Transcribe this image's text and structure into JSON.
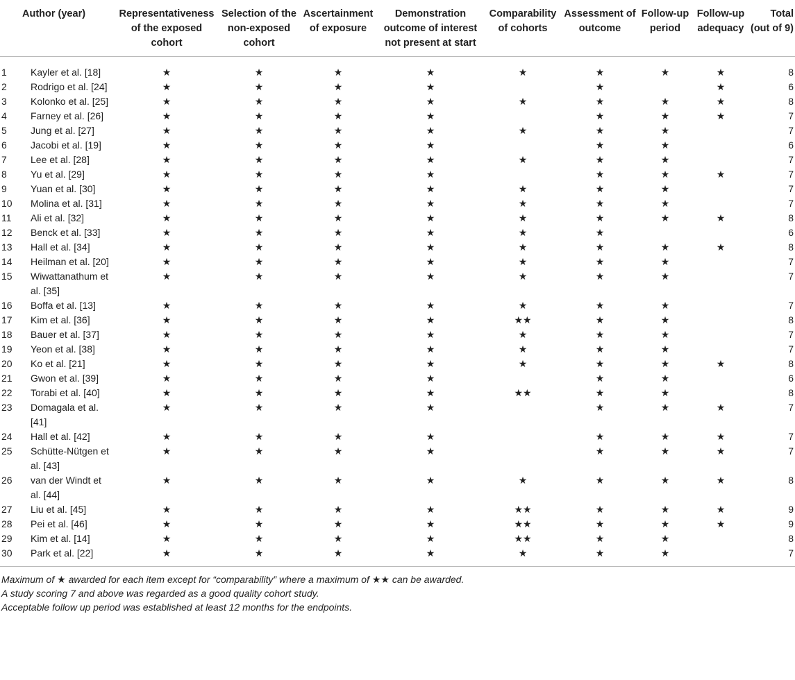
{
  "table": {
    "headers": {
      "number": "",
      "author": "Author (year)",
      "representativeness": "Representativeness of the exposed cohort",
      "selection": "Selection of the non-exposed cohort",
      "ascertainment": "Ascertainment of exposure",
      "demonstration": "Demonstration outcome of interest not present at start",
      "comparability": "Comparability of cohorts",
      "assessment": "Assessment of outcome",
      "followup_period": "Follow-up period",
      "followup_adequacy": "Follow-up adequacy",
      "total": "Total (out of 9)"
    },
    "rows": [
      {
        "num": "1",
        "author": "Kayler et al. [18]",
        "rep": "★",
        "sel": "★",
        "asc": "★",
        "dem": "★",
        "comp": "★",
        "ass": "★",
        "fup": "★",
        "fua": "★",
        "total": "8"
      },
      {
        "num": "2",
        "author": "Rodrigo et al. [24]",
        "rep": "★",
        "sel": "★",
        "asc": "★",
        "dem": "★",
        "comp": "",
        "ass": "★",
        "fup": "",
        "fua": "★",
        "total": "6"
      },
      {
        "num": "3",
        "author": "Kolonko et al. [25]",
        "rep": "★",
        "sel": "★",
        "asc": "★",
        "dem": "★",
        "comp": "★",
        "ass": "★",
        "fup": "★",
        "fua": "★",
        "total": "8"
      },
      {
        "num": "4",
        "author": "Farney et al. [26]",
        "rep": "★",
        "sel": "★",
        "asc": "★",
        "dem": "★",
        "comp": "",
        "ass": "★",
        "fup": "★",
        "fua": "★",
        "total": "7"
      },
      {
        "num": "5",
        "author": "Jung et al. [27]",
        "rep": "★",
        "sel": "★",
        "asc": "★",
        "dem": "★",
        "comp": "★",
        "ass": "★",
        "fup": "★",
        "fua": "",
        "total": "7"
      },
      {
        "num": "6",
        "author": "Jacobi et al. [19]",
        "rep": "★",
        "sel": "★",
        "asc": "★",
        "dem": "★",
        "comp": "",
        "ass": "★",
        "fup": "★",
        "fua": "",
        "total": "6"
      },
      {
        "num": "7",
        "author": "Lee et al. [28]",
        "rep": "★",
        "sel": "★",
        "asc": "★",
        "dem": "★",
        "comp": "★",
        "ass": "★",
        "fup": "★",
        "fua": "",
        "total": "7"
      },
      {
        "num": "8",
        "author": "Yu et al. [29]",
        "rep": "★",
        "sel": "★",
        "asc": "★",
        "dem": "★",
        "comp": "",
        "ass": "★",
        "fup": "★",
        "fua": "★",
        "total": "7"
      },
      {
        "num": "9",
        "author": "Yuan et al. [30]",
        "rep": "★",
        "sel": "★",
        "asc": "★",
        "dem": "★",
        "comp": "★",
        "ass": "★",
        "fup": "★",
        "fua": "",
        "total": "7"
      },
      {
        "num": "10",
        "author": "Molina et al. [31]",
        "rep": "★",
        "sel": "★",
        "asc": "★",
        "dem": "★",
        "comp": "★",
        "ass": "★",
        "fup": "★",
        "fua": "",
        "total": "7"
      },
      {
        "num": "11",
        "author": "Ali et al. [32]",
        "rep": "★",
        "sel": "★",
        "asc": "★",
        "dem": "★",
        "comp": "★",
        "ass": "★",
        "fup": "★",
        "fua": "★",
        "total": "8"
      },
      {
        "num": "12",
        "author": "Benck et al. [33]",
        "rep": "★",
        "sel": "★",
        "asc": "★",
        "dem": "★",
        "comp": "★",
        "ass": "★",
        "fup": "",
        "fua": "",
        "total": "6"
      },
      {
        "num": "13",
        "author": "Hall et al. [34]",
        "rep": "★",
        "sel": "★",
        "asc": "★",
        "dem": "★",
        "comp": "★",
        "ass": "★",
        "fup": "★",
        "fua": "★",
        "total": "8"
      },
      {
        "num": "14",
        "author": "Heilman et al. [20]",
        "rep": "★",
        "sel": "★",
        "asc": "★",
        "dem": "★",
        "comp": "★",
        "ass": "★",
        "fup": "★",
        "fua": "",
        "total": "7"
      },
      {
        "num": "15",
        "author": "Wiwattanathum et al. [35]",
        "rep": "★",
        "sel": "★",
        "asc": "★",
        "dem": "★",
        "comp": "★",
        "ass": "★",
        "fup": "★",
        "fua": "",
        "total": "7"
      },
      {
        "num": "16",
        "author": "Boffa et al. [13]",
        "rep": "★",
        "sel": "★",
        "asc": "★",
        "dem": "★",
        "comp": "★",
        "ass": "★",
        "fup": "★",
        "fua": "",
        "total": "7"
      },
      {
        "num": "17",
        "author": "Kim et al. [36]",
        "rep": "★",
        "sel": "★",
        "asc": "★",
        "dem": "★",
        "comp": "★★",
        "ass": "★",
        "fup": "★",
        "fua": "",
        "total": "8"
      },
      {
        "num": "18",
        "author": "Bauer et al. [37]",
        "rep": "★",
        "sel": "★",
        "asc": "★",
        "dem": "★",
        "comp": "★",
        "ass": "★",
        "fup": "★",
        "fua": "",
        "total": "7"
      },
      {
        "num": "19",
        "author": "Yeon et al. [38]",
        "rep": "★",
        "sel": "★",
        "asc": "★",
        "dem": "★",
        "comp": "★",
        "ass": "★",
        "fup": "★",
        "fua": "",
        "total": "7"
      },
      {
        "num": "20",
        "author": "Ko et al. [21]",
        "rep": "★",
        "sel": "★",
        "asc": "★",
        "dem": "★",
        "comp": "★",
        "ass": "★",
        "fup": "★",
        "fua": "★",
        "total": "8"
      },
      {
        "num": "21",
        "author": "Gwon et al. [39]",
        "rep": "★",
        "sel": "★",
        "asc": "★",
        "dem": "★",
        "comp": "",
        "ass": "★",
        "fup": "★",
        "fua": "",
        "total": "6"
      },
      {
        "num": "22",
        "author": "Torabi et al. [40]",
        "rep": "★",
        "sel": "★",
        "asc": "★",
        "dem": "★",
        "comp": "★★",
        "ass": "★",
        "fup": "★",
        "fua": "",
        "total": "8"
      },
      {
        "num": "23",
        "author": "Domagala et al. [41]",
        "rep": "★",
        "sel": "★",
        "asc": "★",
        "dem": "★",
        "comp": "",
        "ass": "★",
        "fup": "★",
        "fua": "★",
        "total": "7"
      },
      {
        "num": "24",
        "author": "Hall et al. [42]",
        "rep": "★",
        "sel": "★",
        "asc": "★",
        "dem": "★",
        "comp": "",
        "ass": "★",
        "fup": "★",
        "fua": "★",
        "total": "7"
      },
      {
        "num": "25",
        "author": "Schütte-Nütgen et al. [43]",
        "rep": "★",
        "sel": "★",
        "asc": "★",
        "dem": "★",
        "comp": "",
        "ass": "★",
        "fup": "★",
        "fua": "★",
        "total": "7"
      },
      {
        "num": "26",
        "author": "van der Windt et al. [44]",
        "rep": "★",
        "sel": "★",
        "asc": "★",
        "dem": "★",
        "comp": "★",
        "ass": "★",
        "fup": "★",
        "fua": "★",
        "total": "8"
      },
      {
        "num": "27",
        "author": "Liu et al. [45]",
        "rep": "★",
        "sel": "★",
        "asc": "★",
        "dem": "★",
        "comp": "★★",
        "ass": "★",
        "fup": "★",
        "fua": "★",
        "total": "9"
      },
      {
        "num": "28",
        "author": "Pei et al. [46]",
        "rep": "★",
        "sel": "★",
        "asc": "★",
        "dem": "★",
        "comp": "★★",
        "ass": "★",
        "fup": "★",
        "fua": "★",
        "total": "9"
      },
      {
        "num": "29",
        "author": "Kim et al. [14]",
        "rep": "★",
        "sel": "★",
        "asc": "★",
        "dem": "★",
        "comp": "★★",
        "ass": "★",
        "fup": "★",
        "fua": "",
        "total": "8"
      },
      {
        "num": "30",
        "author": "Park et al. [22]",
        "rep": "★",
        "sel": "★",
        "asc": "★",
        "dem": "★",
        "comp": "★",
        "ass": "★",
        "fup": "★",
        "fua": "",
        "total": "7"
      }
    ]
  },
  "notes": [
    "Maximum of ★ awarded for each item except for “comparability” where a maximum of ★★ can be awarded.",
    "A study scoring 7 and above was regarded as a good quality cohort study.",
    "Acceptable follow up period was established at least 12 months for the endpoints."
  ]
}
